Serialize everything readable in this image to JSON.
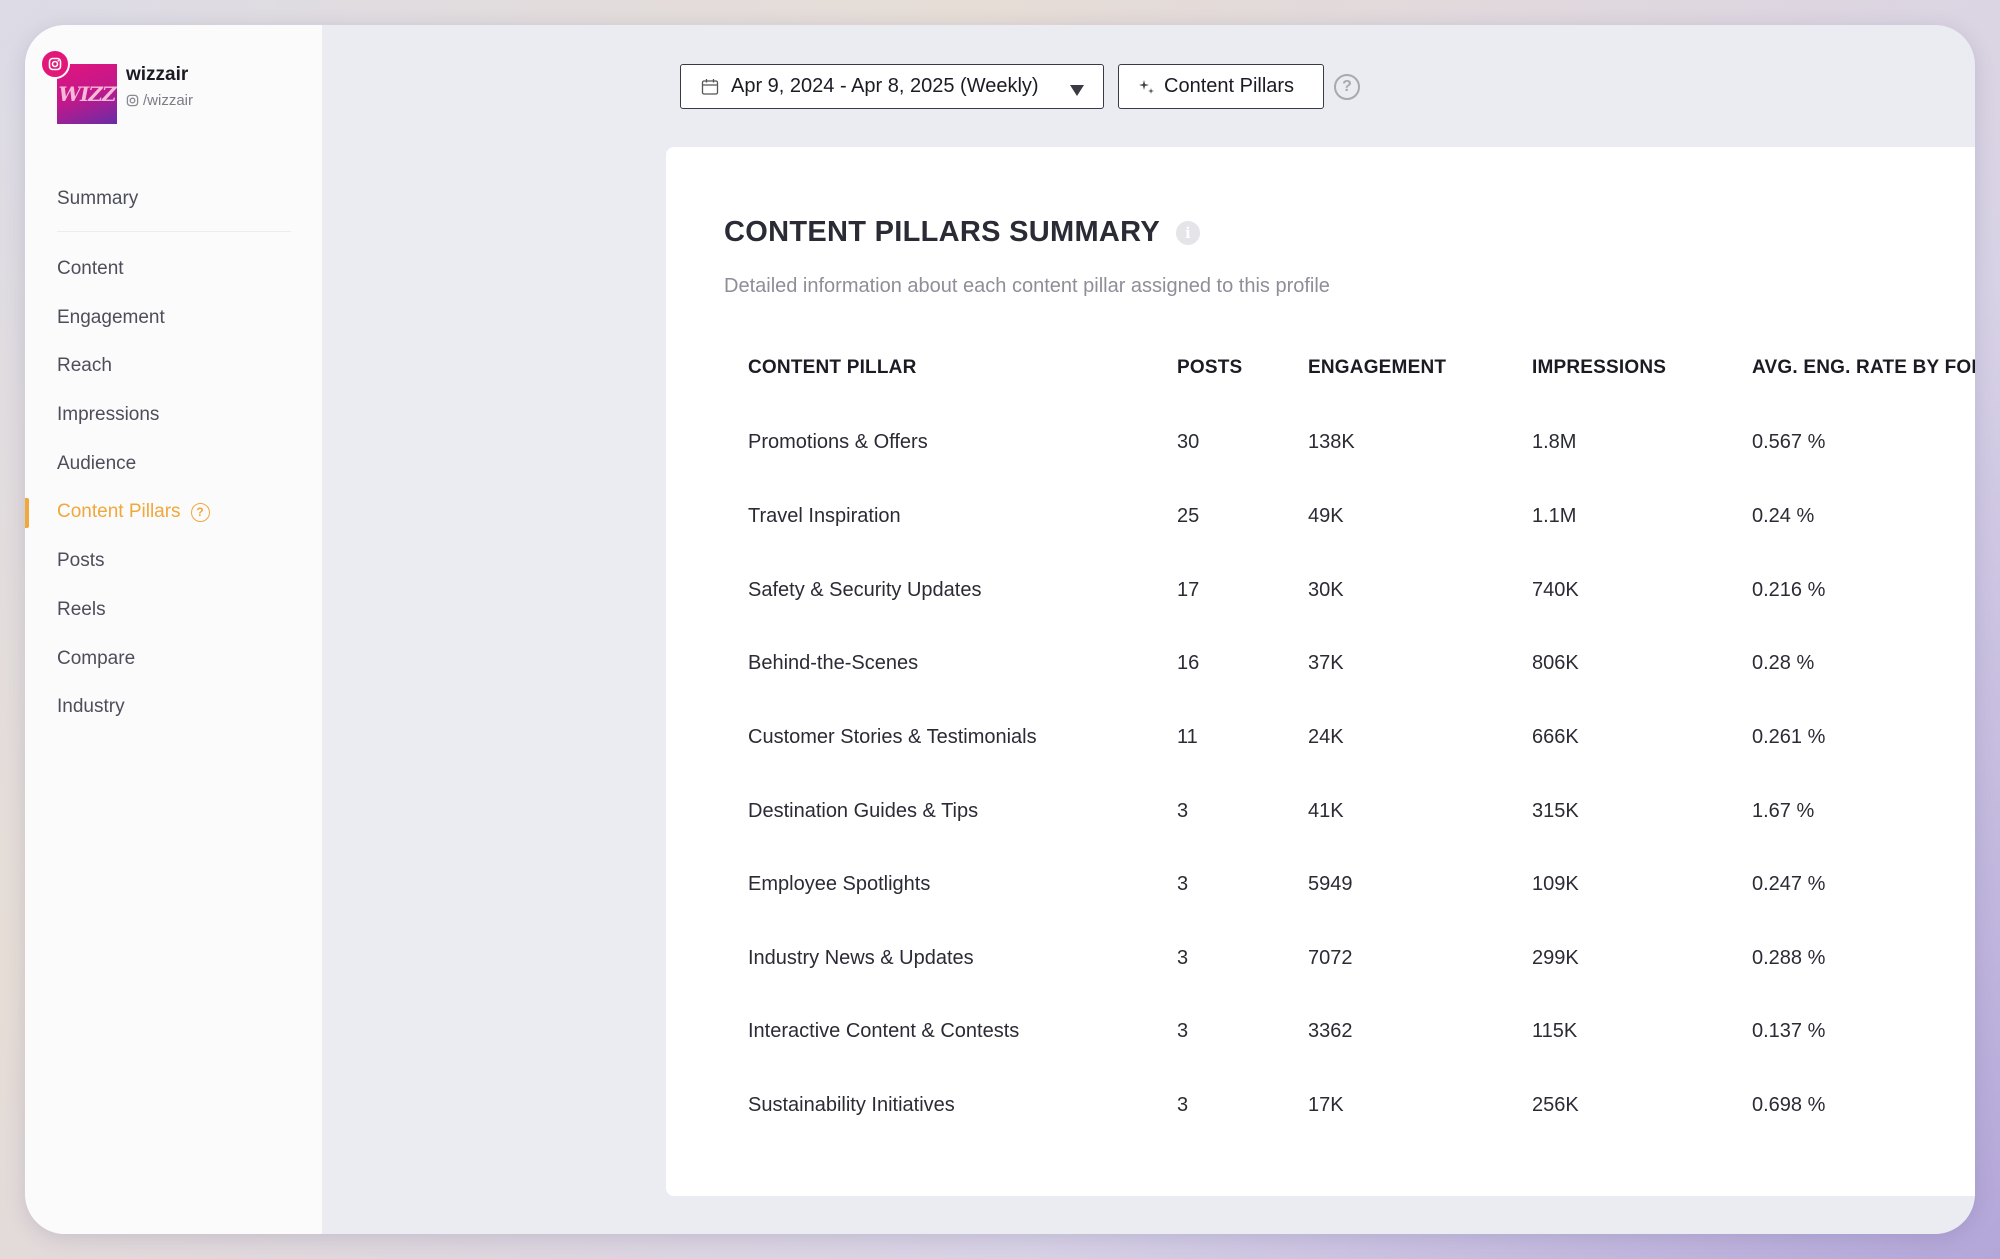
{
  "profile": {
    "name": "wizzair",
    "handle": "/wizzair",
    "avatar_text": "WIZZ",
    "platform_icon": "instagram-icon",
    "brand_color": "#e2177a"
  },
  "sidebar": {
    "items": [
      {
        "label": "Summary"
      },
      {
        "label": "Content"
      },
      {
        "label": "Engagement"
      },
      {
        "label": "Reach"
      },
      {
        "label": "Impressions"
      },
      {
        "label": "Audience"
      },
      {
        "label": "Content Pillars",
        "active": true
      },
      {
        "label": "Posts"
      },
      {
        "label": "Reels"
      },
      {
        "label": "Compare"
      },
      {
        "label": "Industry"
      }
    ],
    "active_color": "#f0a83a"
  },
  "toolbar": {
    "date_range": "Apr 9, 2024 - Apr 8, 2025 (Weekly)",
    "pillars_label": "Content Pillars",
    "help_label": "?"
  },
  "card": {
    "title": "CONTENT PILLARS SUMMARY",
    "subtitle": "Detailed information about each content pillar assigned to this profile",
    "columns": [
      "CONTENT PILLAR",
      "POSTS",
      "ENGAGEMENT",
      "IMPRESSIONS",
      "AVG. ENG. RATE BY FOLLOWERS"
    ],
    "rows": [
      [
        "Promotions & Offers",
        "30",
        "138K",
        "1.8M",
        "0.567 %"
      ],
      [
        "Travel Inspiration",
        "25",
        "49K",
        "1.1M",
        "0.24 %"
      ],
      [
        "Safety & Security Updates",
        "17",
        "30K",
        "740K",
        "0.216 %"
      ],
      [
        "Behind-the-Scenes",
        "16",
        "37K",
        "806K",
        "0.28 %"
      ],
      [
        "Customer Stories & Testimonials",
        "11",
        "24K",
        "666K",
        "0.261 %"
      ],
      [
        "Destination Guides & Tips",
        "3",
        "41K",
        "315K",
        "1.67 %"
      ],
      [
        "Employee Spotlights",
        "3",
        "5949",
        "109K",
        "0.247 %"
      ],
      [
        "Industry News & Updates",
        "3",
        "7072",
        "299K",
        "0.288 %"
      ],
      [
        "Interactive Content & Contests",
        "3",
        "3362",
        "115K",
        "0.137 %"
      ],
      [
        "Sustainability Initiatives",
        "3",
        "17K",
        "256K",
        "0.698 %"
      ]
    ]
  }
}
